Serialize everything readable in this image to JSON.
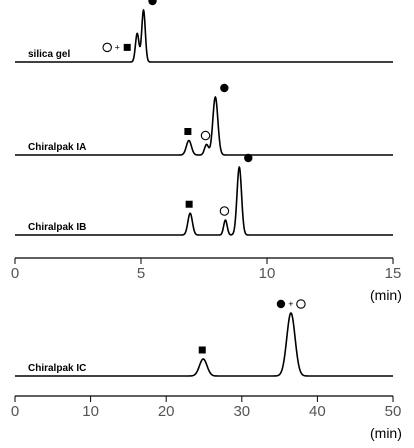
{
  "chart_data": [
    {
      "type": "line",
      "xlabel": "(min)",
      "xlim": [
        0,
        15
      ],
      "xticks": [
        0,
        5,
        10,
        15
      ],
      "series": [
        {
          "name": "silica gel",
          "peaks": [
            {
              "t": 4.85,
              "height": 0.55,
              "width": 0.07,
              "marker": [
                "open-circle",
                "+",
                "square"
              ]
            },
            {
              "t": 5.1,
              "height": 1.0,
              "width": 0.07,
              "marker": [
                "filled-circle"
              ]
            }
          ]
        },
        {
          "name": "Chiralpak IA",
          "peaks": [
            {
              "t": 6.9,
              "height": 0.25,
              "width": 0.1,
              "marker": [
                "square"
              ]
            },
            {
              "t": 7.6,
              "height": 0.18,
              "width": 0.08,
              "marker": [
                "open-circle"
              ]
            },
            {
              "t": 7.95,
              "height": 1.0,
              "width": 0.1,
              "marker": [
                "filled-circle"
              ]
            }
          ]
        },
        {
          "name": "Chiralpak IB",
          "peaks": [
            {
              "t": 6.95,
              "height": 0.32,
              "width": 0.09,
              "marker": [
                "square"
              ]
            },
            {
              "t": 8.35,
              "height": 0.22,
              "width": 0.07,
              "marker": [
                "open-circle"
              ]
            },
            {
              "t": 8.9,
              "height": 1.0,
              "width": 0.09,
              "marker": [
                "filled-circle"
              ]
            }
          ]
        }
      ]
    },
    {
      "type": "line",
      "xlabel": "(min)",
      "xlim": [
        0,
        50
      ],
      "xticks": [
        0,
        10,
        20,
        30,
        40,
        50
      ],
      "series": [
        {
          "name": "Chiralpak IC",
          "peaks": [
            {
              "t": 24.9,
              "height": 0.27,
              "width": 0.5,
              "marker": [
                "square"
              ]
            },
            {
              "t": 36.5,
              "height": 1.0,
              "width": 0.55,
              "marker": [
                "filled-circle",
                "+",
                "open-circle"
              ]
            }
          ]
        }
      ]
    }
  ]
}
